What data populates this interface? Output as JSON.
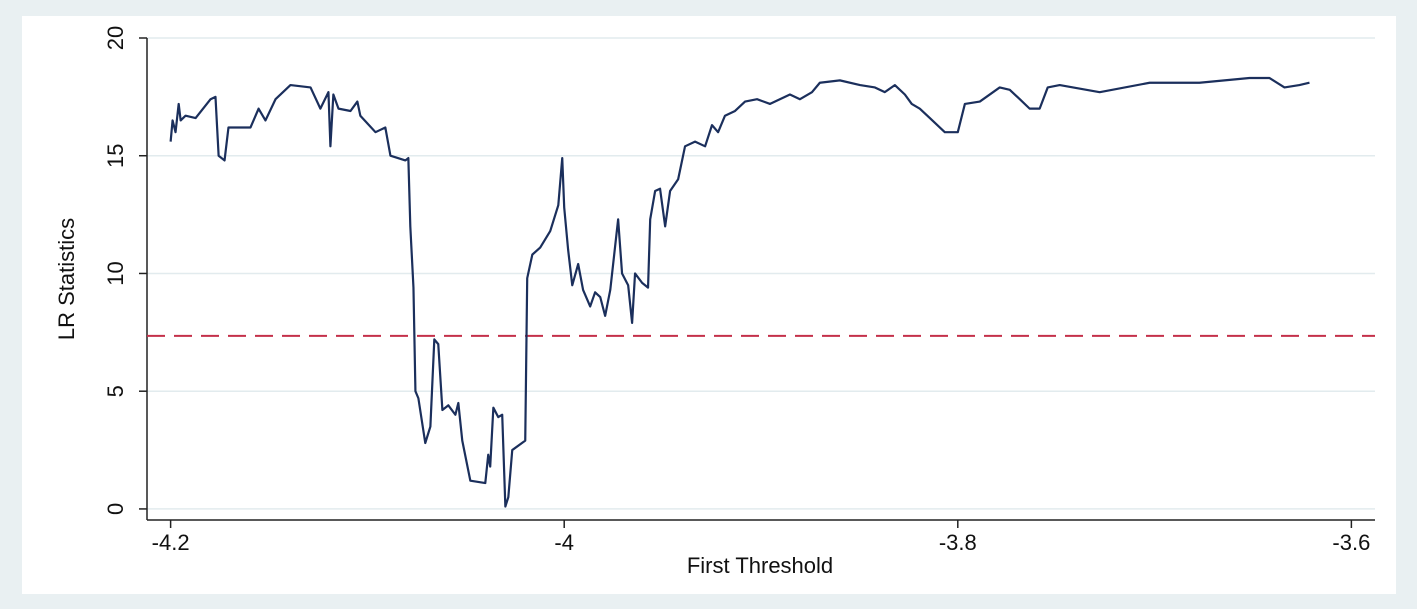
{
  "chart_data": {
    "type": "line",
    "x_label": "First Threshold",
    "y_label": "LR Statistics",
    "x": [
      -4.2,
      -4.199,
      -4.1975,
      -4.1959,
      -4.1949,
      -4.1924,
      -4.1873,
      -4.1797,
      -4.1772,
      -4.1756,
      -4.1726,
      -4.1706,
      -4.1594,
      -4.1553,
      -4.1518,
      -4.1467,
      -4.1391,
      -4.1289,
      -4.1239,
      -4.1198,
      -4.1188,
      -4.1173,
      -4.1147,
      -4.1086,
      -4.1051,
      -4.1036,
      -4.0959,
      -4.0909,
      -4.0883,
      -4.0807,
      -4.0792,
      -4.0782,
      -4.0766,
      -4.0756,
      -4.0741,
      -4.0706,
      -4.068,
      -4.066,
      -4.064,
      -4.0619,
      -4.0589,
      -4.0553,
      -4.0538,
      -4.0518,
      -4.0477,
      -4.0401,
      -4.0386,
      -4.0376,
      -4.036,
      -4.0335,
      -4.0315,
      -4.0299,
      -4.0284,
      -4.0264,
      -4.0198,
      -4.0188,
      -4.0162,
      -4.0122,
      -4.0071,
      -4.003,
      -4.001,
      -4.0,
      -3.998,
      -3.9959,
      -3.9929,
      -3.9904,
      -3.9868,
      -3.9843,
      -3.9817,
      -3.9792,
      -3.9766,
      -3.9726,
      -3.9706,
      -3.9675,
      -3.9655,
      -3.964,
      -3.9604,
      -3.9574,
      -3.9563,
      -3.9538,
      -3.9513,
      -3.9487,
      -3.9462,
      -3.9421,
      -3.9386,
      -3.9335,
      -3.9284,
      -3.9249,
      -3.9218,
      -3.9183,
      -3.9132,
      -3.9081,
      -3.902,
      -3.8954,
      -3.8853,
      -3.8802,
      -3.8741,
      -3.8701,
      -3.8599,
      -3.8497,
      -3.8421,
      -3.8371,
      -3.832,
      -3.8269,
      -3.8234,
      -3.8193,
      -3.8142,
      -3.8066,
      -3.8,
      -3.7964,
      -3.7888,
      -3.7787,
      -3.7736,
      -3.7685,
      -3.7635,
      -3.7584,
      -3.7543,
      -3.7482,
      -3.7279,
      -3.7025,
      -3.6772,
      -3.6518,
      -3.6416,
      -3.634,
      -3.6264,
      -3.6213
    ],
    "series": [
      {
        "color": "#1b2f5c",
        "values": [
          15.6,
          16.5,
          16.0,
          17.2,
          16.5,
          16.7,
          16.6,
          17.4,
          17.5,
          15.0,
          14.8,
          16.2,
          16.2,
          17.0,
          16.5,
          17.4,
          18.0,
          17.9,
          17.0,
          17.7,
          15.4,
          17.6,
          17.0,
          16.9,
          17.3,
          16.7,
          16.0,
          16.2,
          15.0,
          14.8,
          14.9,
          12.0,
          9.4,
          5.0,
          4.7,
          2.8,
          3.5,
          7.2,
          7.0,
          4.2,
          4.4,
          4.0,
          4.5,
          2.9,
          1.2,
          1.1,
          2.3,
          1.8,
          4.3,
          3.9,
          4.0,
          0.1,
          0.5,
          2.5,
          2.9,
          9.8,
          10.8,
          11.1,
          11.8,
          12.9,
          14.9,
          12.8,
          11.0,
          9.5,
          10.4,
          9.3,
          8.6,
          9.2,
          9.0,
          8.2,
          9.3,
          12.3,
          10.0,
          9.5,
          7.9,
          10.0,
          9.6,
          9.4,
          12.3,
          13.5,
          13.6,
          12.0,
          13.5,
          14.0,
          15.4,
          15.6,
          15.4,
          16.3,
          16.0,
          16.7,
          16.9,
          17.3,
          17.4,
          17.2,
          17.6,
          17.4,
          17.7,
          18.1,
          18.2,
          18.0,
          17.9,
          17.7,
          18.0,
          17.6,
          17.2,
          17.0,
          16.6,
          16.0,
          16.0,
          17.2,
          17.3,
          17.9,
          17.8,
          17.4,
          17.0,
          17.0,
          17.9,
          18.0,
          17.7,
          18.1,
          18.1,
          18.3,
          18.3,
          17.9,
          18.0,
          18.1
        ]
      }
    ],
    "reference_line": {
      "value": 7.35,
      "color": "#c4304a",
      "style": "dashed"
    },
    "xlim": [
      -4.212,
      -3.588
    ],
    "xticks": [
      -4.2,
      -4,
      -3.8,
      -3.6
    ],
    "ylim": [
      -0.47,
      20
    ],
    "yticks": [
      0,
      5,
      10,
      15,
      20
    ],
    "grid": true
  }
}
